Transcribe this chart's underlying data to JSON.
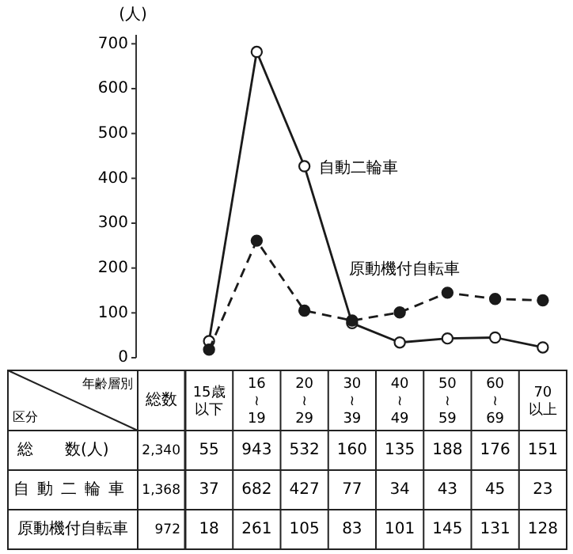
{
  "chart_data": {
    "type": "line",
    "ylabel": "(人)",
    "categories": [
      "15歳以下",
      "16\n≀\n19",
      "20\n≀\n29",
      "30\n≀\n39",
      "40\n≀\n49",
      "50\n≀\n59",
      "60\n≀\n69",
      "70以上"
    ],
    "ylim": [
      0,
      720
    ],
    "yticks": [
      0,
      100,
      200,
      300,
      400,
      500,
      600,
      700
    ],
    "grid": false,
    "marker": "circle",
    "data_labels": true,
    "series": [
      {
        "name": "自動二輪車",
        "color": "#1a1a1a",
        "line_style": "solid",
        "values": [
          37,
          682,
          427,
          77,
          34,
          43,
          45,
          23
        ]
      },
      {
        "name": "原動機付自転車",
        "color": "#1a1a1a",
        "line_style": "dashed",
        "values": [
          18,
          261,
          105,
          83,
          101,
          145,
          131,
          128
        ]
      }
    ],
    "totals": [
      "55",
      "943",
      "532",
      "160",
      "135",
      "188",
      "176",
      "151"
    ],
    "annotations": [
      "年齢層別",
      "区分",
      "総数",
      "総　　数(人)",
      "2,340",
      "1,368",
      "972"
    ]
  }
}
